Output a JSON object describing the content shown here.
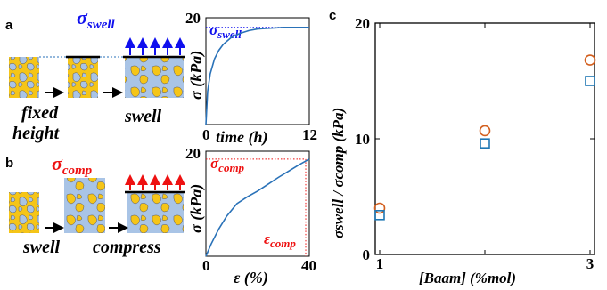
{
  "panels": {
    "a": {
      "letter": "a",
      "sigma_label": "σ",
      "sigma_sub": "swell",
      "caption_fixed": "fixed",
      "caption_height": "height",
      "caption_swell": "swell"
    },
    "b": {
      "letter": "b",
      "sigma_label": "σ",
      "sigma_sub": "comp",
      "caption_swell": "swell",
      "caption_compress": "compress"
    },
    "c": {
      "letter": "c"
    }
  },
  "colors": {
    "blue_text": "#1010ee",
    "red_text": "#ee1111",
    "gel_yellow": "#f5c518",
    "gel_blue": "#a9c4e6",
    "curve_blue": "#2a72b8",
    "orange_marker": "#d35f1e",
    "blue_marker": "#1f77b4"
  },
  "chart_data": [
    {
      "type": "line",
      "panel": "a-inset",
      "xlabel": "time (h)",
      "ylabel": "σ (kPa)",
      "annotation": {
        "symbol": "σ",
        "sub": "swell"
      },
      "xlim": [
        0,
        12
      ],
      "ylim": [
        0,
        20
      ],
      "xticks": [
        "0",
        "12"
      ],
      "yticks": [
        "20"
      ],
      "plateau": 18.2,
      "x": [
        0,
        0.2,
        0.5,
        1,
        1.5,
        2,
        3,
        4,
        5,
        6,
        7,
        8,
        9,
        10,
        11,
        12
      ],
      "y": [
        0,
        6.2,
        9.5,
        12.3,
        13.9,
        15.0,
        16.4,
        17.1,
        17.6,
        17.9,
        18.0,
        18.1,
        18.2,
        18.2,
        18.2,
        18.2
      ]
    },
    {
      "type": "line",
      "panel": "b-inset",
      "xlabel": "ε (%)",
      "ylabel": "σ (kPa)",
      "annotations": [
        {
          "symbol": "σ",
          "sub": "comp"
        },
        {
          "symbol": "ε",
          "sub": "comp"
        }
      ],
      "xlim": [
        0,
        40
      ],
      "ylim": [
        0,
        20
      ],
      "xticks": [
        "0",
        "40"
      ],
      "yticks": [
        "20"
      ],
      "marker_point": [
        40,
        18.5
      ],
      "x": [
        0,
        2,
        5,
        8,
        12,
        16,
        20,
        24,
        28,
        32,
        36,
        40
      ],
      "y": [
        0,
        2.3,
        5.2,
        7.6,
        10.0,
        11.3,
        12.4,
        13.7,
        15.0,
        16.2,
        17.4,
        18.5
      ]
    },
    {
      "type": "scatter",
      "panel": "c",
      "xlabel": "[Baam] (%mol)",
      "ylabel": "σswell / σcomp (kPa)",
      "xlim": [
        1,
        3
      ],
      "ylim": [
        0,
        20
      ],
      "xticks": [
        "1",
        "3"
      ],
      "yticks": [
        "0",
        "10",
        "20"
      ],
      "series": [
        {
          "marker": "circle",
          "color": "#d35f1e",
          "x": [
            1,
            2,
            3
          ],
          "y": [
            4.0,
            10.7,
            16.8
          ]
        },
        {
          "marker": "square",
          "color": "#1f77b4",
          "x": [
            1,
            2,
            3
          ],
          "y": [
            3.4,
            9.6,
            15.0
          ]
        }
      ]
    }
  ]
}
